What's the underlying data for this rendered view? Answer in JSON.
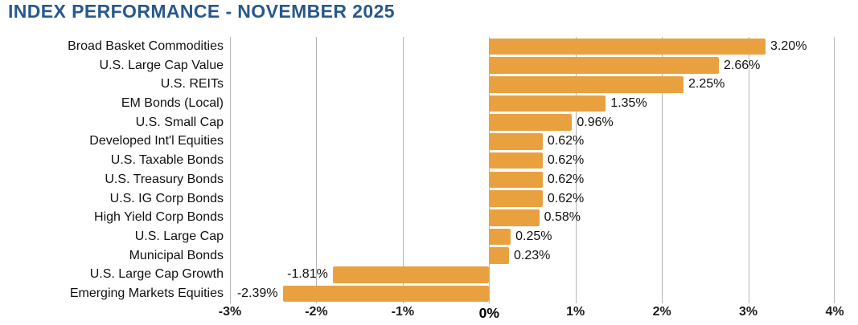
{
  "title": "INDEX PERFORMANCE - NOVEMBER 2025",
  "colors": {
    "title_blue": "#27588C",
    "bar_orange": "#E9A13F",
    "gridline_gray": "#B5B5B5",
    "label_black": "#111111"
  },
  "chart_data": {
    "type": "bar",
    "orientation": "horizontal",
    "title": "INDEX PERFORMANCE - NOVEMBER 2025",
    "categories": [
      "Broad Basket Commodities",
      "U.S. Large Cap Value",
      "U.S. REITs",
      "EM Bonds (Local)",
      "U.S. Small Cap",
      "Developed Int'l Equities",
      "U.S. Taxable Bonds",
      "U.S. Treasury Bonds",
      "U.S. IG Corp Bonds",
      "High Yield Corp Bonds",
      "U.S. Large Cap",
      "Municipal Bonds",
      "U.S. Large Cap Growth",
      "Emerging Markets Equities"
    ],
    "values": [
      3.2,
      2.66,
      2.25,
      1.35,
      0.96,
      0.62,
      0.62,
      0.62,
      0.62,
      0.58,
      0.25,
      0.23,
      -1.81,
      -2.39
    ],
    "value_labels": [
      "3.20%",
      "2.66%",
      "2.25%",
      "1.35%",
      "0.96%",
      "0.62%",
      "0.62%",
      "0.62%",
      "0.62%",
      "0.58%",
      "0.25%",
      "0.23%",
      "-1.81%",
      "-2.39%"
    ],
    "xlabel": "",
    "ylabel": "",
    "xlim": [
      -3,
      4
    ],
    "xticks": [
      -3,
      -2,
      -1,
      0,
      1,
      2,
      3,
      4
    ],
    "xtick_labels": [
      "-3%",
      "-2%",
      "-1%",
      "0%",
      "1%",
      "2%",
      "3%",
      "4%"
    ],
    "grid": true,
    "legend_position": "none",
    "bar_color": "#E9A13F"
  }
}
